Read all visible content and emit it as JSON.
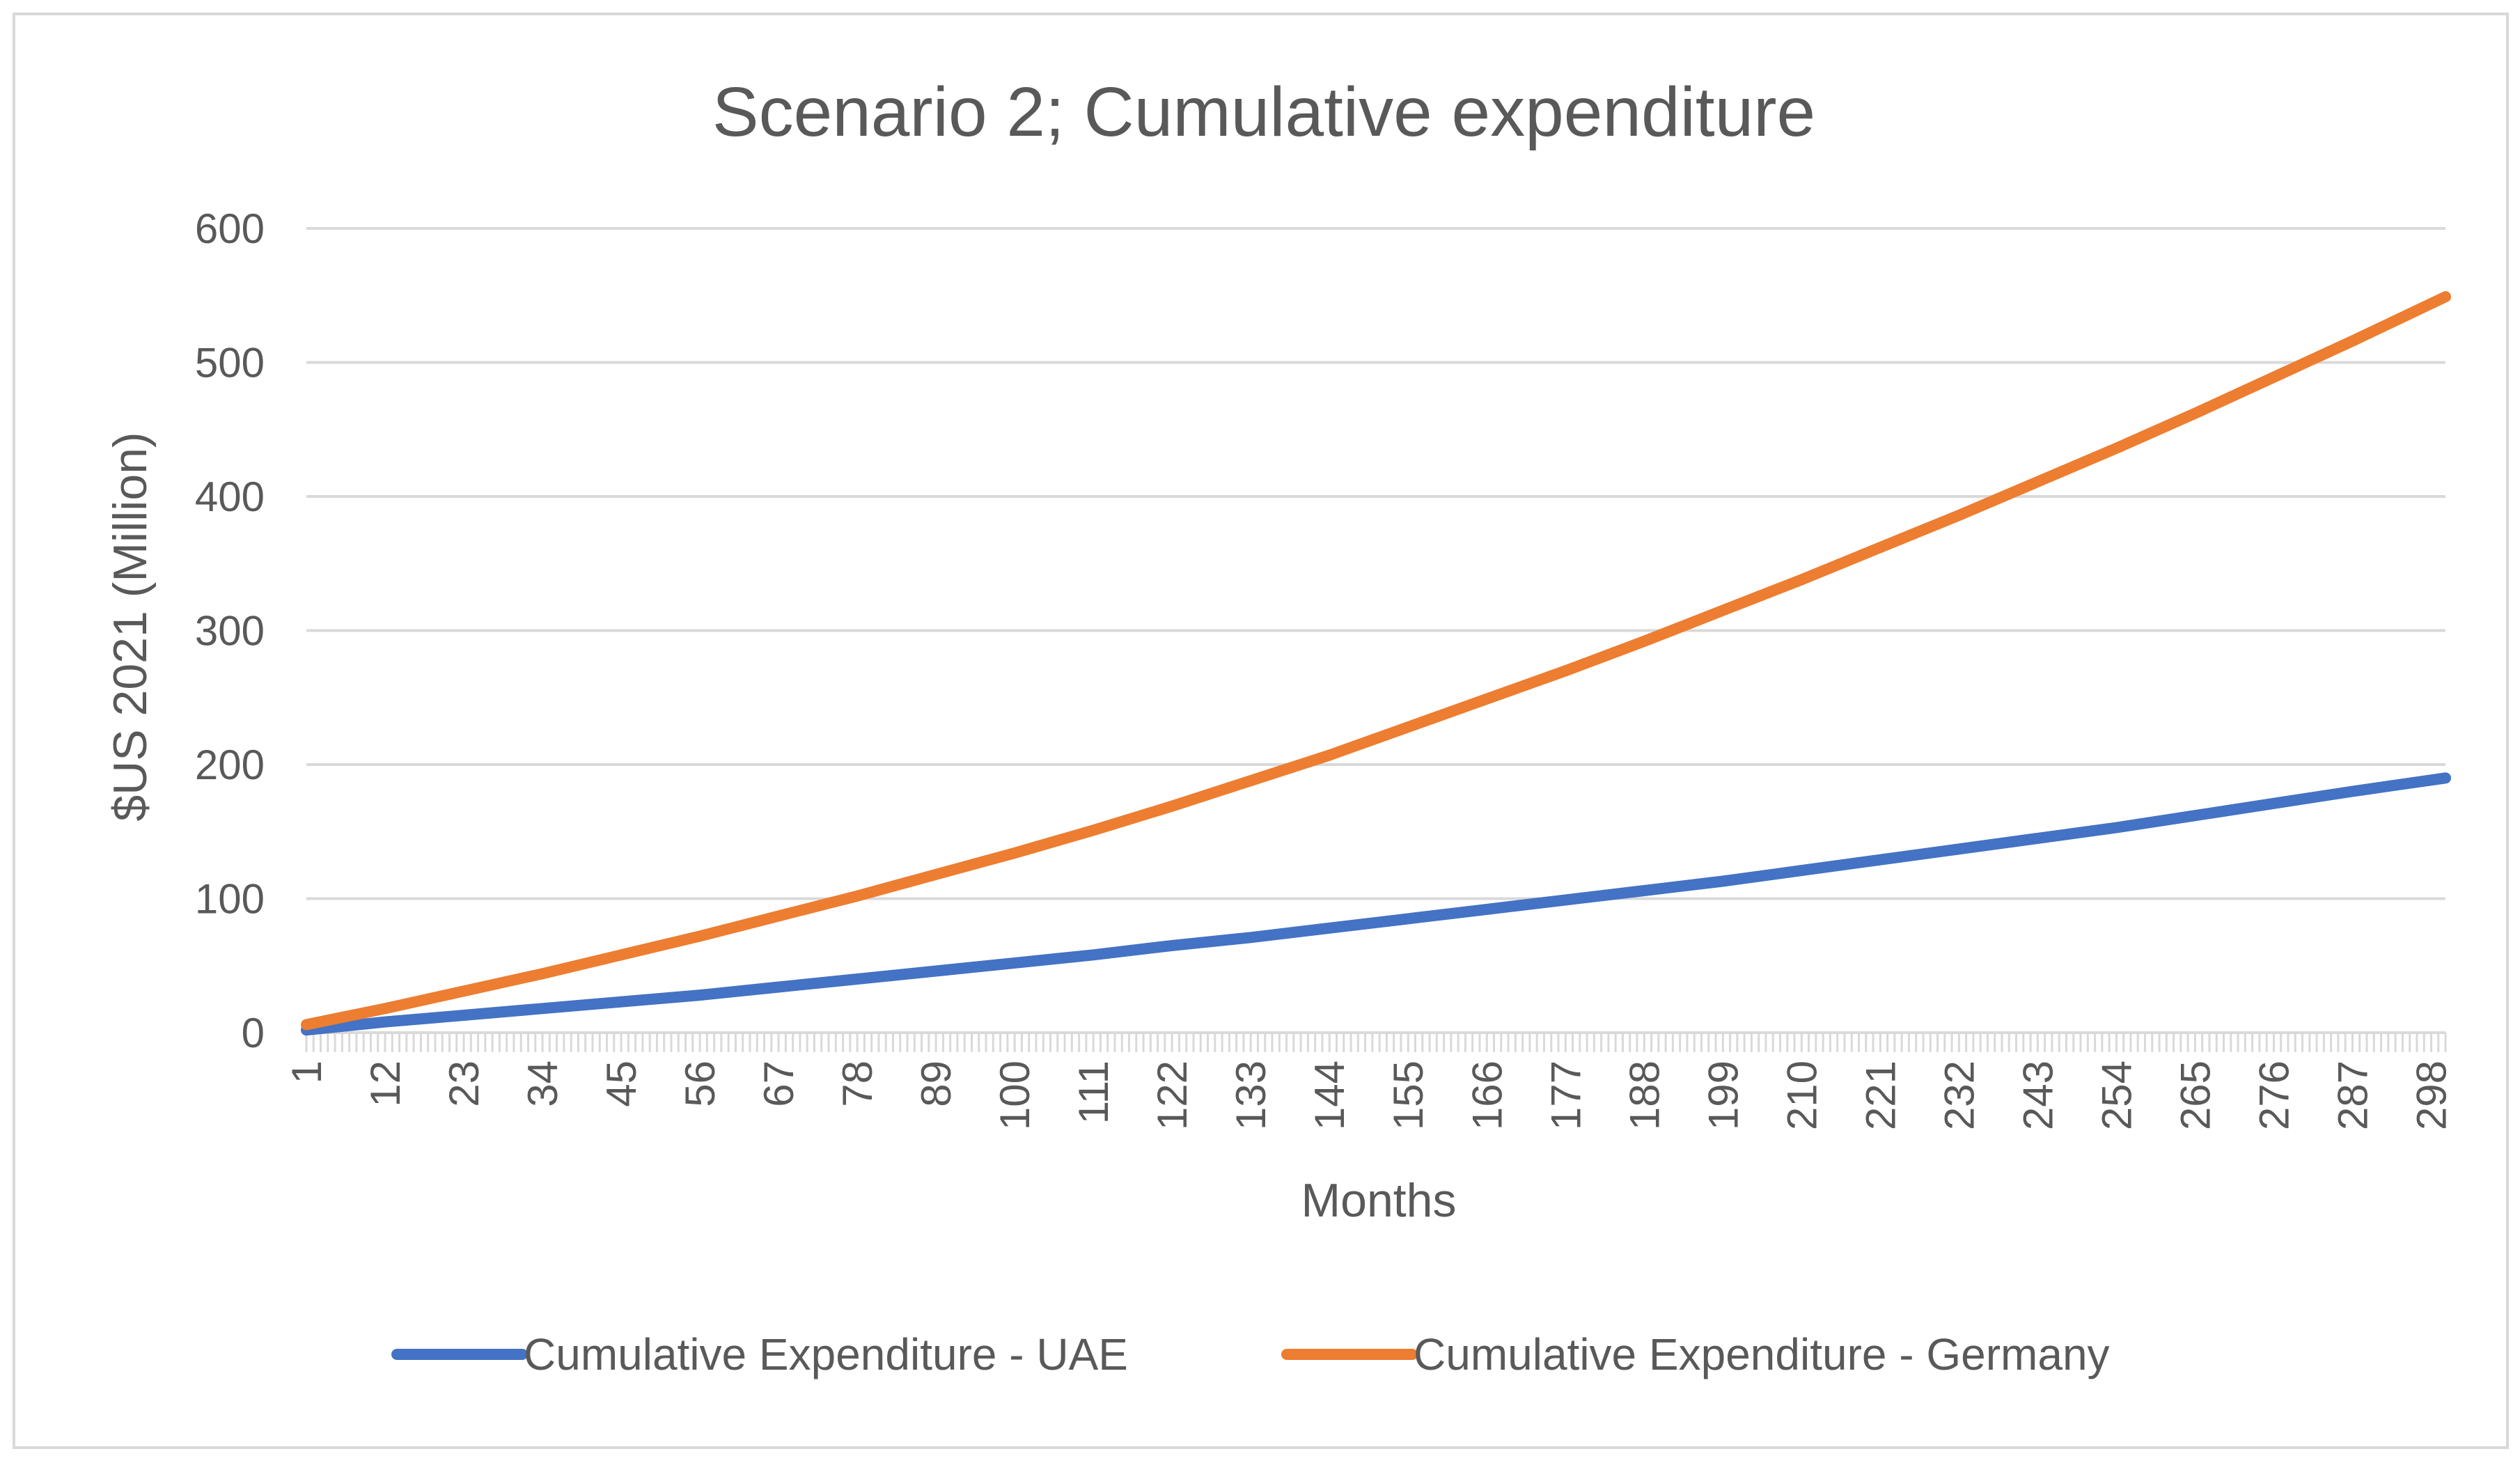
{
  "chart_data": {
    "type": "line",
    "title": "Scenario 2; Cumulative expenditure",
    "xlabel": "Months",
    "ylabel": "$US 2021 (Million)",
    "xlim": [
      1,
      300
    ],
    "ylim": [
      0,
      600
    ],
    "y_ticks": [
      0,
      100,
      200,
      300,
      400,
      500,
      600
    ],
    "x_tick_labels": [
      1,
      12,
      23,
      34,
      45,
      56,
      67,
      78,
      89,
      100,
      111,
      122,
      133,
      144,
      155,
      166,
      177,
      188,
      199,
      210,
      221,
      232,
      243,
      254,
      265,
      276,
      287,
      298
    ],
    "grid": "horizontal",
    "legend_position": "bottom",
    "series": [
      {
        "name": "Cumulative Expenditure - UAE",
        "color": "#4472C4",
        "x": [
          1,
          12,
          23,
          34,
          45,
          56,
          67,
          78,
          89,
          100,
          111,
          122,
          133,
          144,
          155,
          166,
          177,
          188,
          199,
          210,
          221,
          232,
          243,
          254,
          265,
          276,
          287,
          300
        ],
        "values": [
          2,
          8,
          13,
          18,
          23,
          28,
          34,
          40,
          46,
          52,
          58,
          65,
          71,
          78,
          85,
          92,
          99,
          106,
          113,
          121,
          129,
          137,
          145,
          153,
          162,
          171,
          180,
          190
        ]
      },
      {
        "name": "Cumulative Expenditure - Germany",
        "color": "#ED7D31",
        "x": [
          1,
          12,
          23,
          34,
          45,
          56,
          67,
          78,
          89,
          100,
          111,
          122,
          133,
          144,
          155,
          166,
          177,
          188,
          199,
          210,
          221,
          232,
          243,
          254,
          265,
          276,
          287,
          300
        ],
        "values": [
          6,
          18,
          31,
          44,
          58,
          72,
          87,
          102,
          118,
          134,
          151,
          169,
          188,
          207,
          228,
          249,
          270,
          292,
          315,
          338,
          362,
          386,
          411,
          436,
          462,
          489,
          516,
          549
        ]
      }
    ]
  }
}
